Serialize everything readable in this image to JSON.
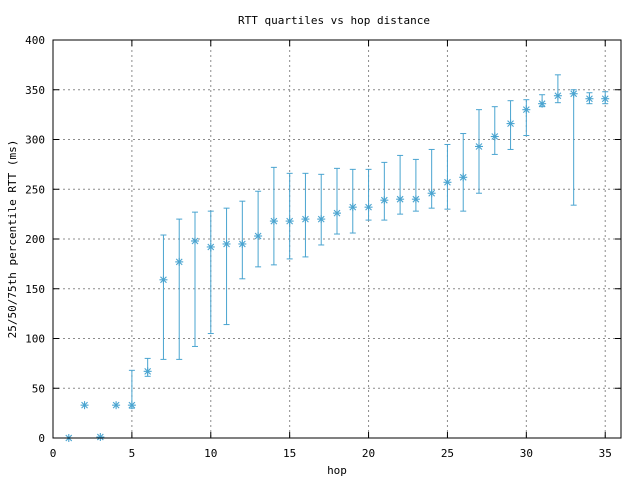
{
  "chart_data": {
    "type": "scatter",
    "title": "RTT quartiles vs hop distance",
    "xlabel": "hop",
    "ylabel": "25/50/75th percentile RTT (ms)",
    "xlim": [
      0,
      36
    ],
    "ylim": [
      0,
      400
    ],
    "xticks": [
      0,
      5,
      10,
      15,
      20,
      25,
      30,
      35
    ],
    "yticks": [
      0,
      50,
      100,
      150,
      200,
      250,
      300,
      350,
      400
    ],
    "grid": true,
    "legend": false,
    "color": "#4aa4d0",
    "series": [
      {
        "marker": "asterisk",
        "errorbars": "25th-75th percentile",
        "points": [
          {
            "hop": 1,
            "p25": 0,
            "p50": 0,
            "p75": 0
          },
          {
            "hop": 2,
            "p25": 33,
            "p50": 33,
            "p75": 33
          },
          {
            "hop": 3,
            "p25": 1,
            "p50": 1,
            "p75": 1
          },
          {
            "hop": 4,
            "p25": 33,
            "p50": 33,
            "p75": 33
          },
          {
            "hop": 5,
            "p25": 30,
            "p50": 33,
            "p75": 68
          },
          {
            "hop": 6,
            "p25": 62,
            "p50": 67,
            "p75": 80
          },
          {
            "hop": 7,
            "p25": 79,
            "p50": 159,
            "p75": 204
          },
          {
            "hop": 8,
            "p25": 79,
            "p50": 177,
            "p75": 220
          },
          {
            "hop": 9,
            "p25": 92,
            "p50": 198,
            "p75": 227
          },
          {
            "hop": 10,
            "p25": 105,
            "p50": 192,
            "p75": 228
          },
          {
            "hop": 11,
            "p25": 114,
            "p50": 195,
            "p75": 231
          },
          {
            "hop": 12,
            "p25": 160,
            "p50": 195,
            "p75": 238
          },
          {
            "hop": 13,
            "p25": 172,
            "p50": 203,
            "p75": 248
          },
          {
            "hop": 14,
            "p25": 174,
            "p50": 218,
            "p75": 272
          },
          {
            "hop": 15,
            "p25": 180,
            "p50": 218,
            "p75": 266
          },
          {
            "hop": 16,
            "p25": 182,
            "p50": 220,
            "p75": 266
          },
          {
            "hop": 17,
            "p25": 194,
            "p50": 220,
            "p75": 265
          },
          {
            "hop": 18,
            "p25": 205,
            "p50": 226,
            "p75": 271
          },
          {
            "hop": 19,
            "p25": 206,
            "p50": 232,
            "p75": 270
          },
          {
            "hop": 20,
            "p25": 219,
            "p50": 232,
            "p75": 270
          },
          {
            "hop": 21,
            "p25": 219,
            "p50": 239,
            "p75": 277
          },
          {
            "hop": 22,
            "p25": 225,
            "p50": 240,
            "p75": 284
          },
          {
            "hop": 23,
            "p25": 228,
            "p50": 240,
            "p75": 280
          },
          {
            "hop": 24,
            "p25": 231,
            "p50": 246,
            "p75": 290
          },
          {
            "hop": 25,
            "p25": 230,
            "p50": 257,
            "p75": 295
          },
          {
            "hop": 26,
            "p25": 228,
            "p50": 262,
            "p75": 306
          },
          {
            "hop": 27,
            "p25": 246,
            "p50": 293,
            "p75": 330
          },
          {
            "hop": 28,
            "p25": 285,
            "p50": 303,
            "p75": 333
          },
          {
            "hop": 29,
            "p25": 290,
            "p50": 316,
            "p75": 339
          },
          {
            "hop": 30,
            "p25": 304,
            "p50": 330,
            "p75": 340
          },
          {
            "hop": 31,
            "p25": 333,
            "p50": 336,
            "p75": 345
          },
          {
            "hop": 32,
            "p25": 337,
            "p50": 344,
            "p75": 365
          },
          {
            "hop": 33,
            "p25": 234,
            "p50": 346,
            "p75": 350
          },
          {
            "hop": 34,
            "p25": 336,
            "p50": 341,
            "p75": 347
          },
          {
            "hop": 35,
            "p25": 336,
            "p50": 341,
            "p75": 348
          }
        ]
      }
    ]
  }
}
